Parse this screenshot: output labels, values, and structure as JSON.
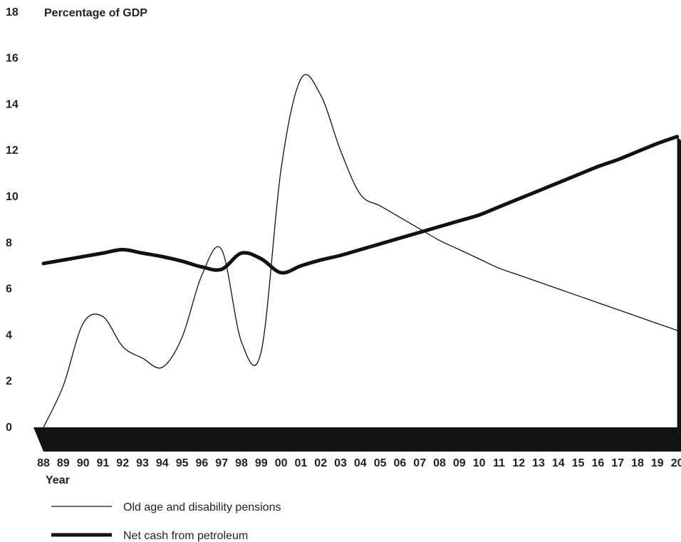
{
  "chart_data": {
    "type": "line",
    "title": "Percentage of GDP",
    "xlabel": "Year",
    "ylabel": "",
    "ylim": [
      0,
      18
    ],
    "yticks": [
      0,
      2,
      4,
      6,
      8,
      10,
      12,
      14,
      16,
      18
    ],
    "categories": [
      "88",
      "89",
      "90",
      "91",
      "92",
      "93",
      "94",
      "95",
      "96",
      "97",
      "98",
      "99",
      "00",
      "01",
      "02",
      "03",
      "04",
      "05",
      "06",
      "07",
      "08",
      "09",
      "10",
      "11",
      "12",
      "13",
      "14",
      "15",
      "16",
      "17",
      "18",
      "19",
      "20"
    ],
    "grid": false,
    "legend_position": "bottom-left",
    "series": [
      {
        "name": "Old age and disability pensions",
        "style": "thin",
        "color": "#111111",
        "values": [
          0.0,
          1.8,
          4.5,
          4.8,
          3.5,
          3.0,
          2.6,
          3.9,
          6.6,
          7.7,
          3.7,
          3.3,
          11.2,
          15.1,
          14.4,
          12.0,
          10.1,
          9.6,
          9.1,
          8.6,
          8.1,
          7.7,
          7.3,
          6.9,
          6.6,
          6.3,
          6.0,
          5.7,
          5.4,
          5.1,
          4.8,
          4.5,
          4.2
        ]
      },
      {
        "name": "Net cash from petroleum",
        "style": "thick",
        "color": "#111111",
        "values": [
          7.1,
          7.25,
          7.4,
          7.55,
          7.7,
          7.55,
          7.4,
          7.2,
          6.95,
          6.85,
          7.55,
          7.3,
          6.7,
          7.0,
          7.25,
          7.45,
          7.7,
          7.95,
          8.2,
          8.45,
          8.7,
          8.95,
          9.2,
          9.55,
          9.9,
          10.25,
          10.6,
          10.95,
          11.3,
          11.6,
          11.95,
          12.3,
          12.6
        ]
      }
    ]
  }
}
